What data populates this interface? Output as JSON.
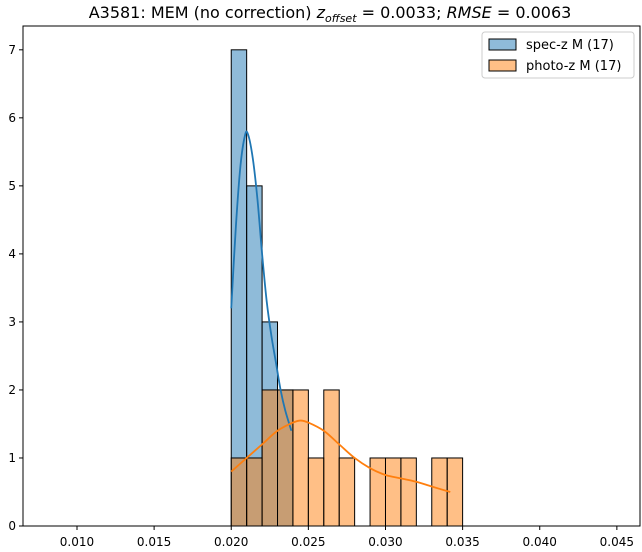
{
  "title": {
    "prefix": "A3581: MEM (no correction) ",
    "z_symbol": "z",
    "z_subscript": "offset",
    "z_value": " = 0.0033; ",
    "rmse_symbol": "RMSE",
    "rmse_value": " = 0.0063"
  },
  "chart_data": {
    "type": "bar",
    "title": "A3581: MEM (no correction) z_offset = 0.0033; RMSE = 0.0063",
    "xlabel": "",
    "ylabel": "",
    "xlim": [
      0.0065,
      0.0465
    ],
    "ylim": [
      0,
      7.35
    ],
    "xticks": [
      0.01,
      0.015,
      0.02,
      0.025,
      0.03,
      0.035,
      0.04,
      0.045
    ],
    "xtick_labels": [
      "0.010",
      "0.015",
      "0.020",
      "0.025",
      "0.030",
      "0.035",
      "0.040",
      "0.045"
    ],
    "yticks": [
      0,
      1,
      2,
      3,
      4,
      5,
      6,
      7
    ],
    "ytick_labels": [
      "0",
      "1",
      "2",
      "3",
      "4",
      "5",
      "6",
      "7"
    ],
    "grid": false,
    "legend_position": "top-right",
    "series": [
      {
        "name": "spec-z M (17)",
        "color": "#1f77b4",
        "bin_width": 0.001,
        "bins": [
          {
            "x0": 0.02,
            "x1": 0.021,
            "count": 7
          },
          {
            "x0": 0.021,
            "x1": 0.022,
            "count": 5
          },
          {
            "x0": 0.022,
            "x1": 0.023,
            "count": 3
          },
          {
            "x0": 0.023,
            "x1": 0.024,
            "count": 2
          }
        ],
        "kde": {
          "x": [
            0.02,
            0.0203,
            0.0206,
            0.0209,
            0.0211,
            0.0214,
            0.0217,
            0.022,
            0.0223,
            0.0226,
            0.0229,
            0.0232,
            0.0235,
            0.0239
          ],
          "y": [
            3.2,
            4.4,
            5.3,
            5.75,
            5.75,
            5.4,
            4.8,
            4.0,
            3.3,
            2.8,
            2.4,
            2.0,
            1.7,
            1.4
          ]
        }
      },
      {
        "name": "photo-z M (17)",
        "color": "#ff7f0e",
        "bin_width": 0.001,
        "bins": [
          {
            "x0": 0.02,
            "x1": 0.021,
            "count": 1
          },
          {
            "x0": 0.021,
            "x1": 0.022,
            "count": 1
          },
          {
            "x0": 0.022,
            "x1": 0.023,
            "count": 2
          },
          {
            "x0": 0.023,
            "x1": 0.024,
            "count": 2
          },
          {
            "x0": 0.024,
            "x1": 0.025,
            "count": 2
          },
          {
            "x0": 0.025,
            "x1": 0.026,
            "count": 1
          },
          {
            "x0": 0.026,
            "x1": 0.027,
            "count": 2
          },
          {
            "x0": 0.027,
            "x1": 0.028,
            "count": 1
          },
          {
            "x0": 0.028,
            "x1": 0.029,
            "count": 0
          },
          {
            "x0": 0.029,
            "x1": 0.03,
            "count": 1
          },
          {
            "x0": 0.03,
            "x1": 0.031,
            "count": 1
          },
          {
            "x0": 0.031,
            "x1": 0.032,
            "count": 1
          },
          {
            "x0": 0.032,
            "x1": 0.033,
            "count": 0
          },
          {
            "x0": 0.033,
            "x1": 0.034,
            "count": 1
          },
          {
            "x0": 0.034,
            "x1": 0.035,
            "count": 1
          }
        ],
        "kde": {
          "x": [
            0.02,
            0.021,
            0.022,
            0.023,
            0.024,
            0.0245,
            0.025,
            0.026,
            0.027,
            0.028,
            0.029,
            0.03,
            0.031,
            0.032,
            0.033,
            0.0342
          ],
          "y": [
            0.8,
            1.0,
            1.2,
            1.4,
            1.52,
            1.55,
            1.52,
            1.4,
            1.2,
            1.0,
            0.85,
            0.75,
            0.7,
            0.65,
            0.58,
            0.5
          ]
        }
      }
    ]
  }
}
